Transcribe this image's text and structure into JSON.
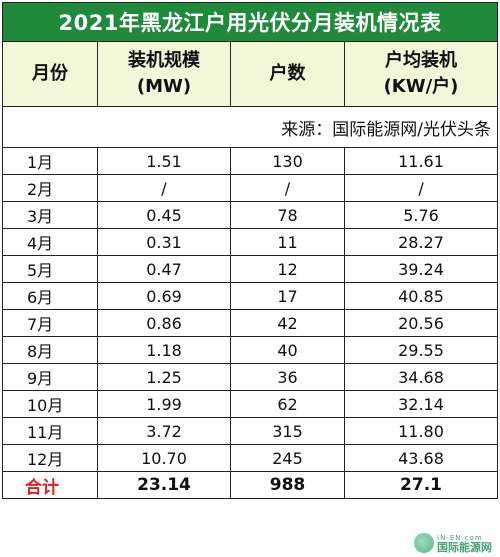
{
  "title": "2021年黑龙江户用光伏分月装机情况表",
  "headers": [
    {
      "line1": "月份",
      "line2": ""
    },
    {
      "line1": "装机规模",
      "line2": "(MW)"
    },
    {
      "line1": "户数",
      "line2": ""
    },
    {
      "line1": "户均装机",
      "line2": "(KW/户)"
    }
  ],
  "source": "来源：国际能源网/光伏头条",
  "rows": [
    {
      "month": "1月",
      "capacity": "1.51",
      "households": "130",
      "avg": "11.61"
    },
    {
      "month": "2月",
      "capacity": "/",
      "households": "/",
      "avg": "/"
    },
    {
      "month": "3月",
      "capacity": "0.45",
      "households": "78",
      "avg": "5.76"
    },
    {
      "month": "4月",
      "capacity": "0.31",
      "households": "11",
      "avg": "28.27"
    },
    {
      "month": "5月",
      "capacity": "0.47",
      "households": "12",
      "avg": "39.24"
    },
    {
      "month": "6月",
      "capacity": "0.69",
      "households": "17",
      "avg": "40.85"
    },
    {
      "month": "7月",
      "capacity": "0.86",
      "households": "42",
      "avg": "20.56"
    },
    {
      "month": "8月",
      "capacity": "1.18",
      "households": "40",
      "avg": "29.55"
    },
    {
      "month": "9月",
      "capacity": "1.25",
      "households": "36",
      "avg": "34.68"
    },
    {
      "month": "10月",
      "capacity": "1.99",
      "households": "62",
      "avg": "32.14"
    },
    {
      "month": "11月",
      "capacity": "3.72",
      "households": "315",
      "avg": "11.80"
    },
    {
      "month": "12月",
      "capacity": "10.70",
      "households": "245",
      "avg": "43.68"
    }
  ],
  "total": {
    "label": "合计",
    "capacity": "23.14",
    "households": "988",
    "avg": "27.1"
  },
  "watermark": {
    "en": "IN-EN.com",
    "cn": "国际能源网"
  },
  "colors": {
    "title_bg": "#1f8a3a",
    "header_bg": "#f2f7d9",
    "total_label": "#e0201c"
  }
}
